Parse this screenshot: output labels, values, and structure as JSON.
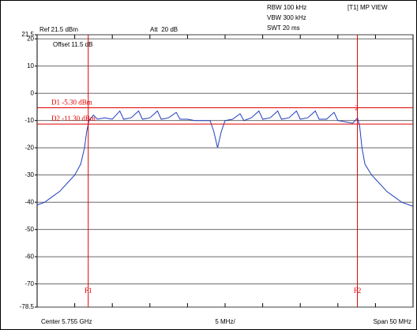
{
  "chart_data": {
    "type": "line",
    "header": [
      "RBW 100 kHz",
      "VBW 300 kHz",
      "SWT 20 ms",
      "[T1] MP VIEW",
      "Ref 21.5 dBm",
      "Att  20 dB",
      "Offset 11.5 dB"
    ],
    "footer": [
      "Center 5.755 GHz",
      "5 MHz/",
      "Span 50 MHz"
    ],
    "xlim": [
      5730,
      5780
    ],
    "xticks": [
      5730,
      5735,
      5740,
      5745,
      5750,
      5755,
      5760,
      5765,
      5770,
      5775,
      5780
    ],
    "ylim": [
      -78.5,
      21.5
    ],
    "yticks": [
      21.5,
      20,
      10,
      0,
      -10,
      -20,
      -30,
      -40,
      -50,
      -60,
      -70,
      -78.5
    ],
    "grid": true,
    "hlines": [
      {
        "label": "D1 -5.30 dBm",
        "value": -5.3,
        "color": "#e00000"
      },
      {
        "label": "D2 -11.30 dBm",
        "value": -11.3,
        "color": "#e00000"
      }
    ],
    "vlines": [
      {
        "label": "F1",
        "value": 5736.8,
        "color": "#e00000"
      },
      {
        "label": "F2",
        "value": 5772.6,
        "color": "#e00000"
      }
    ],
    "marker_label": "2",
    "series": [
      {
        "color": "#1f3fbf",
        "x": [
          5730,
          5731,
          5732,
          5733,
          5734,
          5735,
          5735.8,
          5736.3,
          5736.6,
          5736.9,
          5737.5,
          5738,
          5739,
          5740,
          5741,
          5741.5,
          5742.5,
          5743.5,
          5744,
          5745,
          5746,
          5746.5,
          5747.5,
          5748.5,
          5749,
          5750,
          5751,
          5752,
          5753,
          5753.5,
          5754,
          5754.5,
          5755,
          5756,
          5757,
          5757.5,
          5758.5,
          5759.5,
          5760,
          5761,
          5762,
          5762.5,
          5763.5,
          5764.5,
          5765,
          5766,
          5767,
          5767.5,
          5768.5,
          5769.5,
          5770,
          5771,
          5772,
          5772.6,
          5772.9,
          5773.2,
          5773.6,
          5774.5,
          5775.5,
          5776.5,
          5777.5,
          5778.5,
          5779.5,
          5780
        ],
        "values": [
          -41,
          -40,
          -38,
          -36,
          -33,
          -30,
          -26,
          -20,
          -14,
          -10,
          -8,
          -9.5,
          -9,
          -9.5,
          -6.5,
          -9.5,
          -9,
          -6.5,
          -9.5,
          -9,
          -6.5,
          -9.5,
          -9,
          -7,
          -9.5,
          -9.5,
          -10,
          -10,
          -10,
          -14,
          -20,
          -14,
          -10,
          -9.5,
          -7.5,
          -10,
          -9,
          -6.5,
          -9.5,
          -9,
          -6.5,
          -9.5,
          -9,
          -6.5,
          -9.5,
          -9,
          -6.5,
          -9.5,
          -9.5,
          -7,
          -10,
          -10.5,
          -11,
          -9,
          -12,
          -20,
          -26,
          -30,
          -33,
          -36,
          -38,
          -40,
          -41,
          -41.5
        ]
      }
    ]
  }
}
